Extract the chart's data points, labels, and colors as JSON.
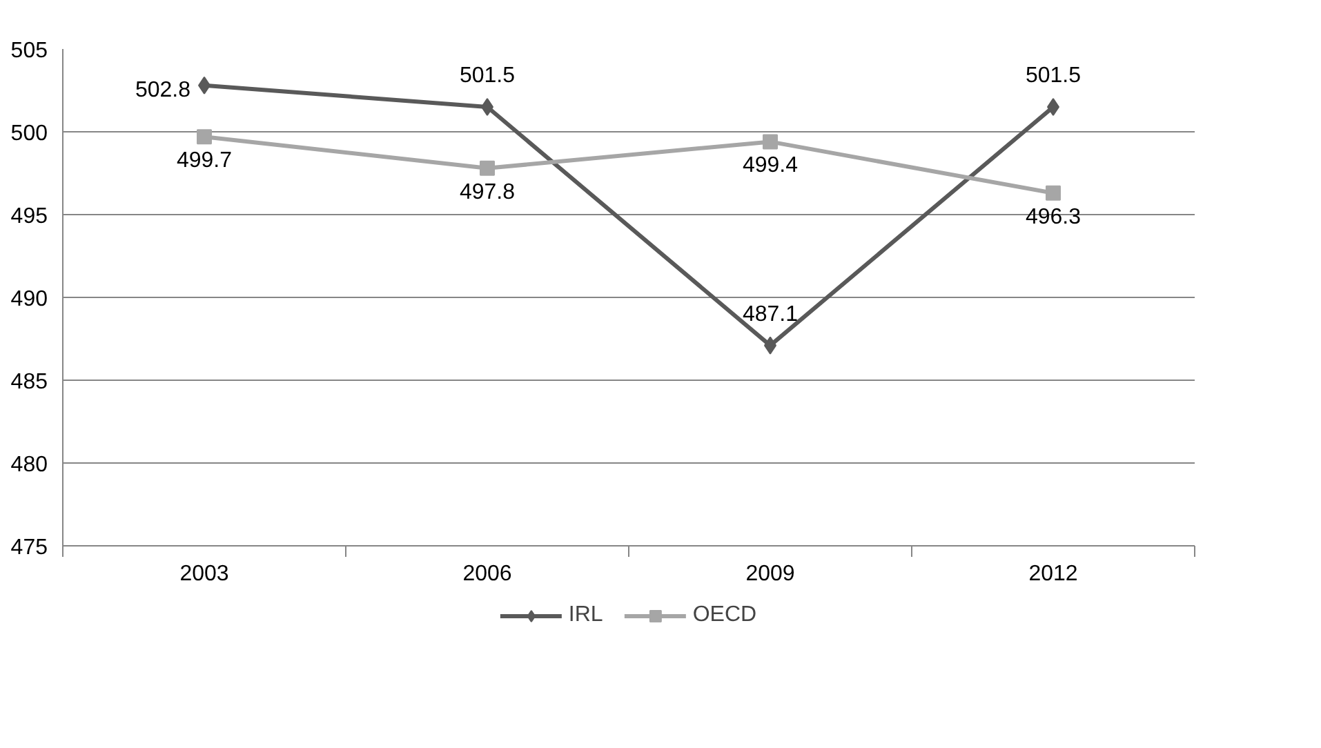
{
  "chart_data": {
    "type": "line",
    "categories": [
      "2003",
      "2006",
      "2009",
      "2012"
    ],
    "series": [
      {
        "name": "IRL",
        "color": "#595959",
        "marker": "diamond",
        "values": [
          502.8,
          501.5,
          487.1,
          501.5
        ]
      },
      {
        "name": "OECD",
        "color": "#a6a6a6",
        "marker": "square",
        "values": [
          499.7,
          497.8,
          499.4,
          496.3
        ]
      }
    ],
    "ylim": [
      475,
      505
    ],
    "yticks": [
      475,
      480,
      485,
      490,
      495,
      500,
      505
    ],
    "grid": "y",
    "legend": "bottom",
    "data_labels": true,
    "line_style": "solid"
  }
}
